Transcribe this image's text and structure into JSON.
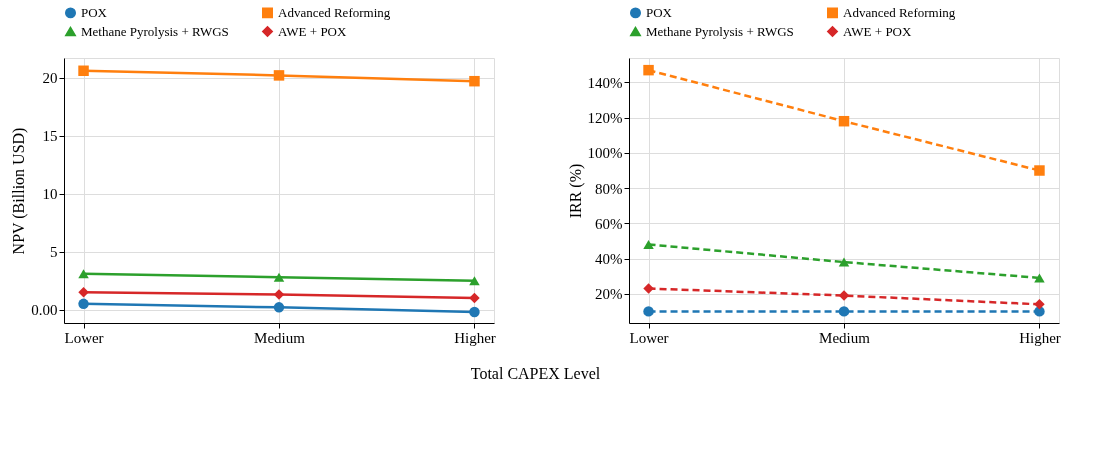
{
  "chart_data": [
    {
      "type": "line",
      "xlabel": "Total CAPEX Level",
      "ylabel": "NPV (Billion USD)",
      "categories": [
        "Lower",
        "Medium",
        "Higher"
      ],
      "series": [
        {
          "name": "POX",
          "color": "#1f77b4",
          "marker": "circle",
          "values": [
            0.5,
            0.2,
            -0.2
          ]
        },
        {
          "name": "Advanced Reforming",
          "color": "#ff7f0e",
          "marker": "square",
          "values": [
            20.6,
            20.2,
            19.7
          ]
        },
        {
          "name": "Methane Pyrolysis + RWGS",
          "color": "#2ca02c",
          "marker": "triangle",
          "values": [
            3.1,
            2.8,
            2.5
          ]
        },
        {
          "name": "AWE + POX",
          "color": "#d62728",
          "marker": "diamond",
          "values": [
            1.5,
            1.3,
            1.0
          ]
        }
      ],
      "ylim": [
        -1.15,
        21.7
      ],
      "yticks": [
        {
          "value": 0,
          "label": "0.00"
        },
        5,
        10,
        15,
        20
      ],
      "grid": true,
      "legend": "top",
      "line_style": "solid"
    },
    {
      "type": "line",
      "ylabel": "IRR (%)",
      "categories": [
        "Lower",
        "Medium",
        "Higher"
      ],
      "series": [
        {
          "name": "POX",
          "color": "#1f77b4",
          "marker": "circle",
          "values": [
            10,
            10,
            10
          ]
        },
        {
          "name": "Advanced Reforming",
          "color": "#ff7f0e",
          "marker": "square",
          "values": [
            147,
            118,
            90
          ]
        },
        {
          "name": "Methane Pyrolysis + RWGS",
          "color": "#2ca02c",
          "marker": "triangle",
          "values": [
            48,
            38,
            29
          ]
        },
        {
          "name": "AWE + POX",
          "color": "#d62728",
          "marker": "diamond",
          "values": [
            23,
            19,
            14
          ]
        }
      ],
      "ylim": [
        3.4,
        153.9
      ],
      "yticks": [
        {
          "value": 20,
          "label": "20%"
        },
        {
          "value": 40,
          "label": "40%"
        },
        {
          "value": 60,
          "label": "60%"
        },
        {
          "value": 80,
          "label": "80%"
        },
        {
          "value": 100,
          "label": "100%"
        },
        {
          "value": 120,
          "label": "120%"
        },
        {
          "value": 140,
          "label": "140%"
        }
      ],
      "grid": true,
      "legend": "top",
      "line_style": "dashed"
    }
  ]
}
